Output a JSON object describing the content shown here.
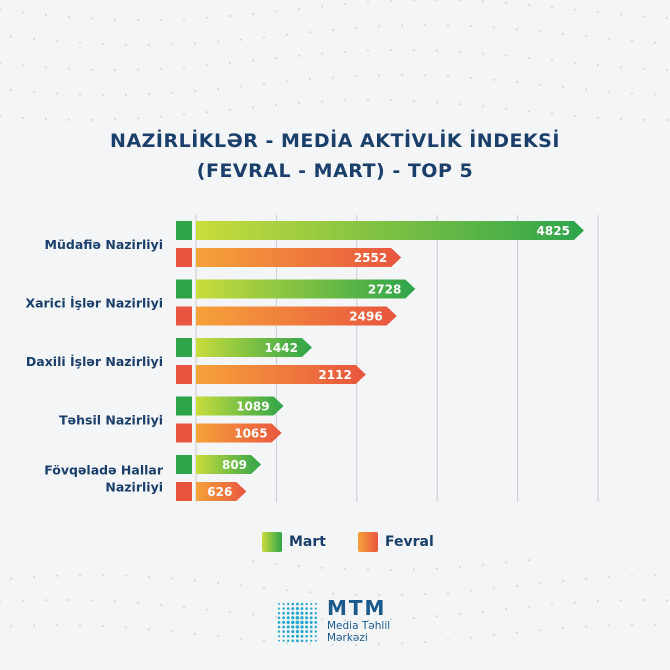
{
  "chart_data": {
    "type": "bar",
    "orientation": "horizontal",
    "title_lines": [
      "NAZİRLİKLƏR - MEDİA AKTİVLİK İNDEKSİ",
      "(FEVRAL - MART) - TOP 5"
    ],
    "categories": [
      [
        "Müdafiə Nazirliyi"
      ],
      [
        "Xarici İşlər Nazirliyi"
      ],
      [
        "Daxili İşlər Nazirliyi"
      ],
      [
        "Təhsil Nazirliyi"
      ],
      [
        "Fövqəladə Hallar",
        "Nazirliyi"
      ]
    ],
    "series": [
      {
        "name": "Mart",
        "values": [
          4825,
          2728,
          1442,
          1089,
          809
        ],
        "color_from": "#c9dc3c",
        "color_to": "#2ea44a"
      },
      {
        "name": "Fevral",
        "values": [
          2552,
          2496,
          2112,
          1065,
          626
        ],
        "color_from": "#f6a23a",
        "color_to": "#e8553f"
      }
    ],
    "xlim": [
      0,
      5000
    ],
    "grid": true,
    "legend_position": "bottom"
  },
  "colors": {
    "title": "#1a3f6b",
    "label": "#1a3f6b",
    "grid": "#c9cdd2"
  },
  "logo": {
    "title": "MTM",
    "subtitle_line1": "Media Təhlil",
    "subtitle_line2": "Mərkəzi"
  }
}
